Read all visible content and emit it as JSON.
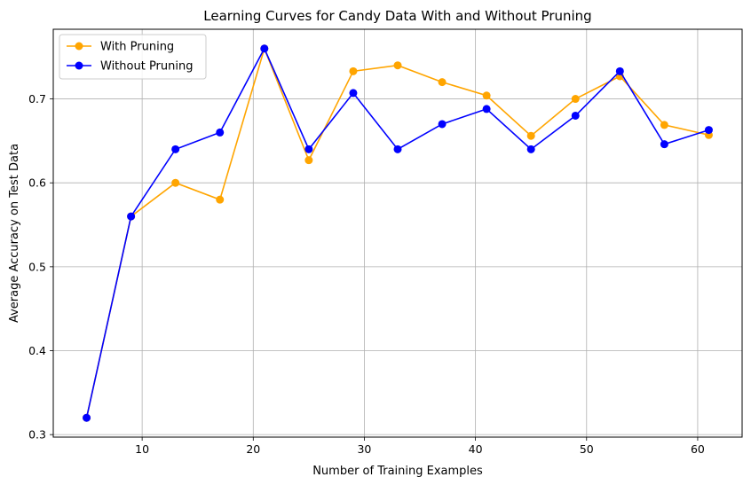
{
  "chart_data": {
    "type": "line",
    "title": "Learning Curves for Candy Data With and Without Pruning",
    "xlabel": "Number of Training Examples",
    "ylabel": "Average Accuracy on Test Data",
    "xlim": [
      2,
      64
    ],
    "ylim": [
      0.297,
      0.783
    ],
    "xticks": [
      10,
      20,
      30,
      40,
      50,
      60
    ],
    "yticks": [
      0.3,
      0.4,
      0.5,
      0.6,
      0.7
    ],
    "ytick_labels": [
      "0.3",
      "0.4",
      "0.5",
      "0.6",
      "0.7"
    ],
    "grid": true,
    "legend_position": "top-left",
    "x": [
      5,
      9,
      13,
      17,
      21,
      25,
      29,
      33,
      37,
      41,
      45,
      49,
      53,
      57,
      61
    ],
    "series": [
      {
        "name": "With Pruning",
        "color": "#ffa500",
        "values": [
          0.32,
          0.56,
          0.6,
          0.58,
          0.76,
          0.627,
          0.733,
          0.74,
          0.72,
          0.704,
          0.656,
          0.7,
          0.727,
          0.669,
          0.657
        ]
      },
      {
        "name": "Without Pruning",
        "color": "#0000ff",
        "values": [
          0.32,
          0.56,
          0.64,
          0.66,
          0.76,
          0.64,
          0.707,
          0.64,
          0.67,
          0.688,
          0.64,
          0.68,
          0.733,
          0.646,
          0.663
        ]
      }
    ]
  }
}
